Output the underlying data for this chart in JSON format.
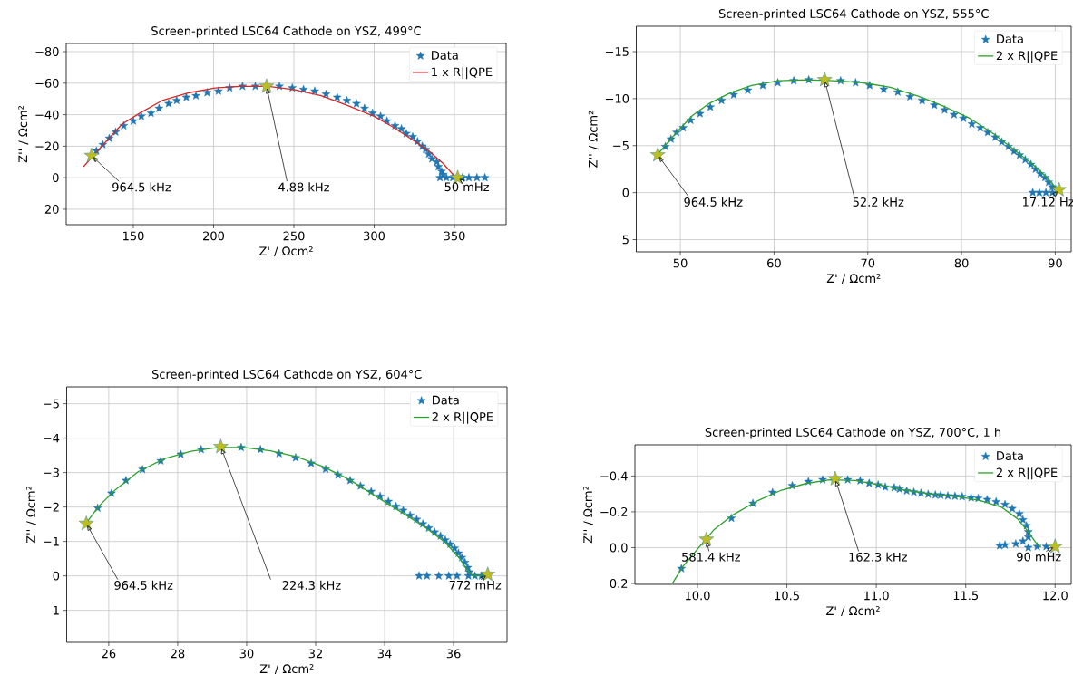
{
  "chart_data": [
    {
      "type": "scatter",
      "title": "Screen-printed LSC64 Cathode on YSZ, 499°C",
      "xlabel": "Z' / Ωcm²",
      "ylabel": "Z'' / Ωcm²",
      "xlim": [
        108.2,
        382.2
      ],
      "ylim": [
        29.8,
        -85.2
      ],
      "xticks": [
        150,
        200,
        250,
        300,
        350
      ],
      "yticks": [
        {
          "value": -80,
          "label": "−80"
        },
        {
          "value": -60,
          "label": "−60"
        },
        {
          "value": -40,
          "label": "−40"
        },
        {
          "value": -20,
          "label": "−20"
        },
        0,
        20
      ],
      "grid": true,
      "legend": "top right",
      "marker": "star",
      "series": [
        {
          "name": "Data",
          "color": "#1f77b4",
          "x": [
            127,
            131,
            135,
            139,
            144,
            150,
            155,
            161,
            166,
            172,
            177,
            183,
            189,
            196,
            203,
            210,
            218,
            226,
            241,
            249,
            256,
            263,
            270,
            277,
            283,
            289,
            294,
            299,
            304,
            308,
            313,
            317,
            320,
            324,
            327,
            330,
            332,
            334,
            336,
            339,
            340,
            342,
            343,
            341,
            345,
            349,
            355,
            359,
            364,
            369
          ],
          "values": [
            -17,
            -21,
            -25,
            -29,
            -33,
            -36,
            -39,
            -41,
            -44,
            -47,
            -49,
            -51,
            -52,
            -54,
            -55,
            -57,
            -58,
            -58,
            -58,
            -57,
            -56,
            -55,
            -53,
            -51,
            -49,
            -47,
            -44,
            -41,
            -39,
            -36,
            -33,
            -31,
            -28,
            -26,
            -23,
            -20,
            -18,
            -15,
            -12,
            -10,
            -7,
            -4,
            -2,
            0,
            0,
            0,
            0,
            0,
            0,
            0
          ]
        },
        {
          "name": "1 x R||QPE",
          "type": "line",
          "marker": "none",
          "color": "#d62728",
          "x": [
            119,
            125,
            133,
            143,
            154,
            168,
            185,
            201,
            217,
            234,
            250,
            267,
            283,
            300,
            312,
            324,
            334,
            343,
            350
          ],
          "values": [
            -7,
            -14,
            -23,
            -34,
            -41,
            -49,
            -54,
            -57,
            -58,
            -58,
            -56,
            -52,
            -46,
            -39,
            -32,
            -24,
            -17,
            -9,
            -1
          ]
        },
        {
          "color": "#bcbd22",
          "x": [
            124,
            233,
            352
          ],
          "values": [
            -14,
            -58,
            0
          ]
        }
      ],
      "annotations": [
        {
          "text": "964.5 kHz",
          "x": 124,
          "y": -14
        },
        {
          "text": "4.88 kHz",
          "x": 233,
          "y": -58
        },
        {
          "text": "50 mHz",
          "x": 352,
          "y": 0
        }
      ]
    },
    {
      "type": "scatter",
      "title": "Screen-printed LSC64 Cathode on YSZ, 555°C",
      "xlabel": "Z' / Ωcm²",
      "ylabel": "Z'' / Ωcm²",
      "xlim": [
        45.3,
        91.7
      ],
      "ylim": [
        6.3,
        -17.7
      ],
      "xticks": [
        50,
        60,
        70,
        80,
        90
      ],
      "yticks": [
        {
          "value": -15,
          "label": "−15"
        },
        {
          "value": -10,
          "label": "−10"
        },
        {
          "value": -5,
          "label": "−5"
        },
        0,
        5
      ],
      "grid": true,
      "legend": "top right",
      "marker": "star",
      "series": [
        {
          "name": "Data",
          "color": "#1f77b4",
          "x": [
            48.4,
            49.0,
            49.6,
            50.3,
            51.1,
            52.1,
            53.2,
            54.4,
            55.7,
            57.2,
            58.8,
            60.4,
            62.1,
            63.7,
            67.1,
            68.7,
            70.2,
            71.7,
            73.2,
            74.5,
            75.8,
            77.1,
            78.2,
            79.2,
            80.2,
            81.1,
            82.0,
            82.8,
            83.6,
            84.3,
            85.0,
            85.6,
            86.2,
            86.8,
            87.4,
            87.9,
            88.4,
            88.9,
            89.3,
            89.7,
            87.6,
            88.3,
            89.0,
            89.7
          ],
          "values": [
            -4.9,
            -5.7,
            -6.4,
            -6.9,
            -7.7,
            -8.4,
            -9.1,
            -9.8,
            -10.4,
            -10.9,
            -11.4,
            -11.7,
            -11.9,
            -12.0,
            -11.9,
            -11.7,
            -11.4,
            -11.0,
            -10.7,
            -10.2,
            -9.8,
            -9.3,
            -8.8,
            -8.3,
            -7.9,
            -7.3,
            -6.9,
            -6.4,
            -5.9,
            -5.4,
            -4.9,
            -4.4,
            -4.0,
            -3.5,
            -3.0,
            -2.5,
            -2.0,
            -1.6,
            -1.1,
            -0.6,
            0.0,
            0.0,
            0.0,
            0.0
          ]
        },
        {
          "name": "2 x R||QPE",
          "type": "line",
          "marker": "none",
          "color": "#2ca02c",
          "x": [
            47.6,
            49.4,
            51.3,
            53.1,
            55.3,
            57.6,
            60.5,
            63.5,
            66.4,
            69.4,
            72.4,
            75.3,
            78.3,
            80.9,
            83.5,
            85.7,
            87.6,
            89.0,
            90.0,
            90.3
          ],
          "values": [
            -4.1,
            -6.2,
            -8.2,
            -9.5,
            -10.6,
            -11.4,
            -11.9,
            -12.0,
            -11.9,
            -11.7,
            -11.2,
            -10.3,
            -9.1,
            -7.9,
            -6.2,
            -4.5,
            -3.0,
            -1.7,
            -0.6,
            -0.1
          ]
        },
        {
          "color": "#bcbd22",
          "x": [
            47.6,
            65.4,
            90.4
          ],
          "values": [
            -4.0,
            -12.0,
            -0.3
          ]
        }
      ],
      "annotations": [
        {
          "text": "964.5 kHz",
          "x": 47.6,
          "y": -4.0
        },
        {
          "text": "52.2 kHz",
          "x": 65.4,
          "y": -12.0
        },
        {
          "text": "17.12 Hz",
          "x": 90.4,
          "y": -0.3
        }
      ]
    },
    {
      "type": "scatter",
      "title": "Screen-printed LSC64 Cathode on YSZ, 604°C",
      "xlabel": "Z' / Ωcm²",
      "ylabel": "Z'' / Ωcm²",
      "xlim": [
        24.78,
        37.55
      ],
      "ylim": [
        1.93,
        -5.49
      ],
      "xticks": [
        26,
        28,
        30,
        32,
        34,
        36
      ],
      "yticks": [
        {
          "value": -5,
          "label": "−5"
        },
        {
          "value": -4,
          "label": "−4"
        },
        {
          "value": -3,
          "label": "−3"
        },
        {
          "value": -2,
          "label": "−2"
        },
        {
          "value": -1,
          "label": "−1"
        },
        0,
        1
      ],
      "grid": true,
      "legend": "top right",
      "marker": "star",
      "series": [
        {
          "name": "Data",
          "color": "#1f77b4",
          "x": [
            25.68,
            26.08,
            26.5,
            26.98,
            27.51,
            28.09,
            28.68,
            29.84,
            30.4,
            30.94,
            31.42,
            31.87,
            32.29,
            32.65,
            33.0,
            33.3,
            33.61,
            33.87,
            34.11,
            34.33,
            34.54,
            34.74,
            34.93,
            35.11,
            35.28,
            35.45,
            35.62,
            35.76,
            35.9,
            36.03,
            36.14,
            36.24,
            36.33,
            36.41,
            36.46,
            35.0,
            35.23,
            35.57,
            35.86,
            36.1,
            36.43,
            36.62,
            36.81
          ],
          "values": [
            -1.97,
            -2.4,
            -2.77,
            -3.09,
            -3.34,
            -3.53,
            -3.67,
            -3.73,
            -3.67,
            -3.55,
            -3.43,
            -3.27,
            -3.1,
            -2.93,
            -2.77,
            -2.61,
            -2.45,
            -2.31,
            -2.16,
            -2.02,
            -1.9,
            -1.76,
            -1.64,
            -1.51,
            -1.39,
            -1.27,
            -1.16,
            -1.04,
            -0.92,
            -0.8,
            -0.66,
            -0.53,
            -0.39,
            -0.24,
            -0.11,
            0.0,
            0.0,
            0.0,
            0.0,
            0.0,
            0.0,
            0.0,
            0.0
          ]
        },
        {
          "name": "2 x R||QPE",
          "type": "line",
          "marker": "none",
          "color": "#2ca02c",
          "x": [
            25.35,
            25.71,
            26.19,
            26.86,
            27.63,
            28.39,
            29.16,
            29.92,
            30.69,
            31.45,
            32.22,
            32.99,
            33.75,
            34.52,
            35.19,
            35.76,
            36.19,
            36.38,
            36.55,
            36.91
          ],
          "values": [
            -1.54,
            -2.02,
            -2.5,
            -3.03,
            -3.41,
            -3.62,
            -3.73,
            -3.73,
            -3.63,
            -3.46,
            -3.17,
            -2.79,
            -2.31,
            -1.83,
            -1.4,
            -0.97,
            -0.49,
            -0.2,
            0.0,
            0.0
          ]
        },
        {
          "color": "#bcbd22",
          "x": [
            25.35,
            29.25,
            36.99
          ],
          "values": [
            -1.52,
            -3.75,
            -0.04
          ]
        }
      ],
      "annotations": [
        {
          "text": "964.5 kHz",
          "x": 25.35,
          "y": -1.52
        },
        {
          "text": "224.3 kHz",
          "x": 29.25,
          "y": -3.75
        },
        {
          "text": "772 mHz",
          "x": 36.99,
          "y": -0.04
        }
      ]
    },
    {
      "type": "scatter",
      "title": "Screen-printed LSC64 Cathode on YSZ, 700°C, 1 h",
      "xlabel": "Z' / Ωcm²",
      "ylabel": "Z'' / Ωcm²",
      "xlim": [
        9.65,
        12.09
      ],
      "ylim": [
        0.205,
        -0.574
      ],
      "xticks": [
        {
          "value": 10,
          "label": "10.0"
        },
        {
          "value": 10.5,
          "label": "10.5"
        },
        {
          "value": 11,
          "label": "11.0"
        },
        {
          "value": 11.5,
          "label": "11.5"
        },
        {
          "value": 12,
          "label": "12.0"
        }
      ],
      "yticks": [
        {
          "value": -0.4,
          "label": "−0.4"
        },
        {
          "value": -0.2,
          "label": "−0.2"
        },
        {
          "value": 0,
          "label": "0.0"
        },
        {
          "value": 0.2,
          "label": "0.2"
        }
      ],
      "grid": true,
      "legend": "top right",
      "marker": "star",
      "series": [
        {
          "name": "Data",
          "color": "#1f77b4",
          "x": [
            9.91,
            10.19,
            10.31,
            10.42,
            10.53,
            10.62,
            10.7,
            10.84,
            10.91,
            10.96,
            11.01,
            11.05,
            11.1,
            11.13,
            11.17,
            11.21,
            11.25,
            11.29,
            11.33,
            11.36,
            11.4,
            11.44,
            11.48,
            11.53,
            11.57,
            11.62,
            11.67,
            11.72,
            11.76,
            11.8,
            11.82,
            11.84,
            11.85,
            11.85,
            11.82,
            11.78,
            11.72,
            11.69,
            11.85,
            11.9,
            11.95
          ],
          "values": [
            0.117,
            -0.164,
            -0.247,
            -0.308,
            -0.346,
            -0.369,
            -0.379,
            -0.379,
            -0.373,
            -0.359,
            -0.35,
            -0.338,
            -0.335,
            -0.327,
            -0.317,
            -0.31,
            -0.304,
            -0.298,
            -0.294,
            -0.293,
            -0.289,
            -0.287,
            -0.285,
            -0.279,
            -0.275,
            -0.268,
            -0.256,
            -0.241,
            -0.218,
            -0.189,
            -0.155,
            -0.122,
            -0.088,
            -0.059,
            -0.036,
            -0.021,
            -0.015,
            -0.011,
            0.0,
            -0.006,
            -0.006
          ]
        },
        {
          "name": "2 x R||QPE",
          "type": "line",
          "marker": "none",
          "color": "#2ca02c",
          "x": [
            9.86,
            9.92,
            10.0,
            10.09,
            10.2,
            10.34,
            10.47,
            10.61,
            10.74,
            10.88,
            11.01,
            11.16,
            11.32,
            11.47,
            11.58,
            11.7,
            11.79,
            11.85,
            11.89,
            11.92
          ],
          "values": [
            0.199,
            0.103,
            0.008,
            -0.098,
            -0.184,
            -0.264,
            -0.321,
            -0.359,
            -0.379,
            -0.375,
            -0.352,
            -0.321,
            -0.298,
            -0.283,
            -0.264,
            -0.226,
            -0.161,
            -0.088,
            -0.031,
            -0.002
          ]
        },
        {
          "color": "#bcbd22",
          "x": [
            10.05,
            10.77,
            12.0
          ],
          "values": [
            -0.046,
            -0.384,
            -0.006
          ]
        }
      ],
      "annotations": [
        {
          "text": "581.4 kHz",
          "x": 10.05,
          "y": -0.046
        },
        {
          "text": "162.3 kHz",
          "x": 10.77,
          "y": -0.384
        },
        {
          "text": "90 mHz",
          "x": 12.0,
          "y": -0.006
        }
      ]
    }
  ]
}
